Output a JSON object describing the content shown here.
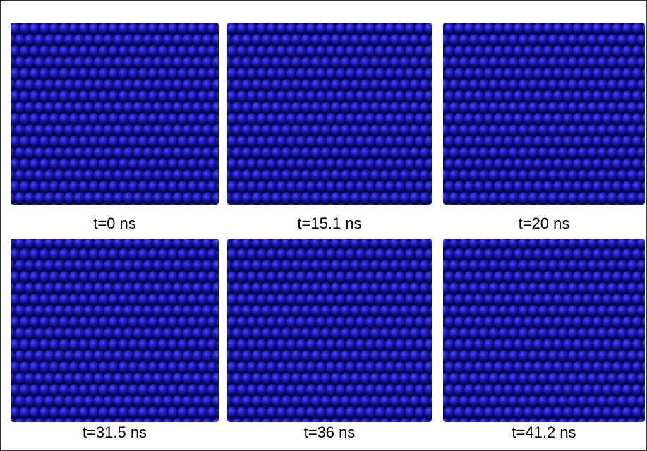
{
  "panels": [
    {
      "label": "t=0 ns"
    },
    {
      "label": "t=15.1 ns"
    },
    {
      "label": "t=20 ns"
    },
    {
      "label": "t=31.5 ns"
    },
    {
      "label": "t=36 ns"
    },
    {
      "label": "t=41.2 ns"
    }
  ]
}
